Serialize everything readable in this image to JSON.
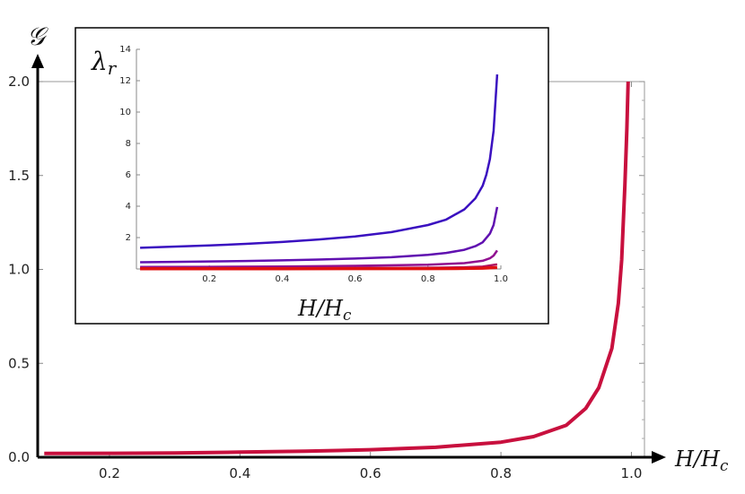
{
  "chart_data": [
    {
      "type": "line",
      "title": "",
      "xlabel": "H/H_c",
      "ylabel": "𝒢",
      "xlim": [
        0.09,
        1.02
      ],
      "ylim": [
        0.0,
        2.0
      ],
      "xticks": [
        "0.2",
        "0.4",
        "0.6",
        "0.8",
        "1.0"
      ],
      "yticks": [
        "0.0",
        "0.5",
        "1.0",
        "1.5",
        "2.0"
      ],
      "grid": false,
      "series": [
        {
          "color": "#c8103e",
          "x": [
            0.1,
            0.2,
            0.3,
            0.4,
            0.5,
            0.6,
            0.7,
            0.8,
            0.85,
            0.9,
            0.93,
            0.95,
            0.97,
            0.98,
            0.985,
            0.99,
            0.993,
            0.995
          ],
          "y": [
            0.02,
            0.021,
            0.023,
            0.027,
            0.032,
            0.04,
            0.053,
            0.08,
            0.11,
            0.17,
            0.26,
            0.37,
            0.58,
            0.82,
            1.05,
            1.45,
            1.75,
            2.0
          ]
        }
      ]
    },
    {
      "type": "line",
      "title": "",
      "xlabel": "H/H_c",
      "ylabel": "λ_r",
      "xlim": [
        0.0,
        1.0
      ],
      "ylim": [
        0,
        14
      ],
      "xticks": [
        "0.2",
        "0.4",
        "0.6",
        "0.8",
        "1.0"
      ],
      "yticks": [
        "2",
        "4",
        "6",
        "8",
        "10",
        "12",
        "14"
      ],
      "grid": false,
      "series": [
        {
          "color": "#3a10c0",
          "x": [
            0.01,
            0.1,
            0.2,
            0.3,
            0.4,
            0.5,
            0.6,
            0.7,
            0.8,
            0.85,
            0.9,
            0.93,
            0.95,
            0.96,
            0.97,
            0.98,
            0.99
          ],
          "y": [
            1.35,
            1.42,
            1.5,
            1.6,
            1.72,
            1.88,
            2.07,
            2.35,
            2.8,
            3.15,
            3.8,
            4.5,
            5.3,
            6.0,
            7.0,
            8.8,
            12.4
          ]
        },
        {
          "color": "#6010b0",
          "x": [
            0.01,
            0.1,
            0.2,
            0.3,
            0.4,
            0.5,
            0.6,
            0.7,
            0.8,
            0.85,
            0.9,
            0.93,
            0.95,
            0.97,
            0.98,
            0.99
          ],
          "y": [
            0.43,
            0.45,
            0.48,
            0.51,
            0.55,
            0.6,
            0.66,
            0.75,
            0.9,
            1.02,
            1.22,
            1.45,
            1.7,
            2.25,
            2.8,
            3.95
          ]
        },
        {
          "color": "#901090",
          "x": [
            0.01,
            0.2,
            0.4,
            0.6,
            0.8,
            0.9,
            0.95,
            0.97,
            0.98,
            0.99
          ],
          "y": [
            0.13,
            0.14,
            0.16,
            0.2,
            0.27,
            0.37,
            0.52,
            0.68,
            0.85,
            1.18
          ]
        },
        {
          "color": "#b01060",
          "x": [
            0.01,
            0.4,
            0.8,
            0.9,
            0.95,
            0.99
          ],
          "y": [
            0.04,
            0.05,
            0.08,
            0.11,
            0.15,
            0.3
          ]
        },
        {
          "color": "#e01010",
          "x": [
            0.01,
            0.4,
            0.8,
            0.9,
            0.95,
            0.99
          ],
          "y": [
            0.01,
            0.015,
            0.025,
            0.035,
            0.05,
            0.09
          ]
        }
      ]
    }
  ]
}
